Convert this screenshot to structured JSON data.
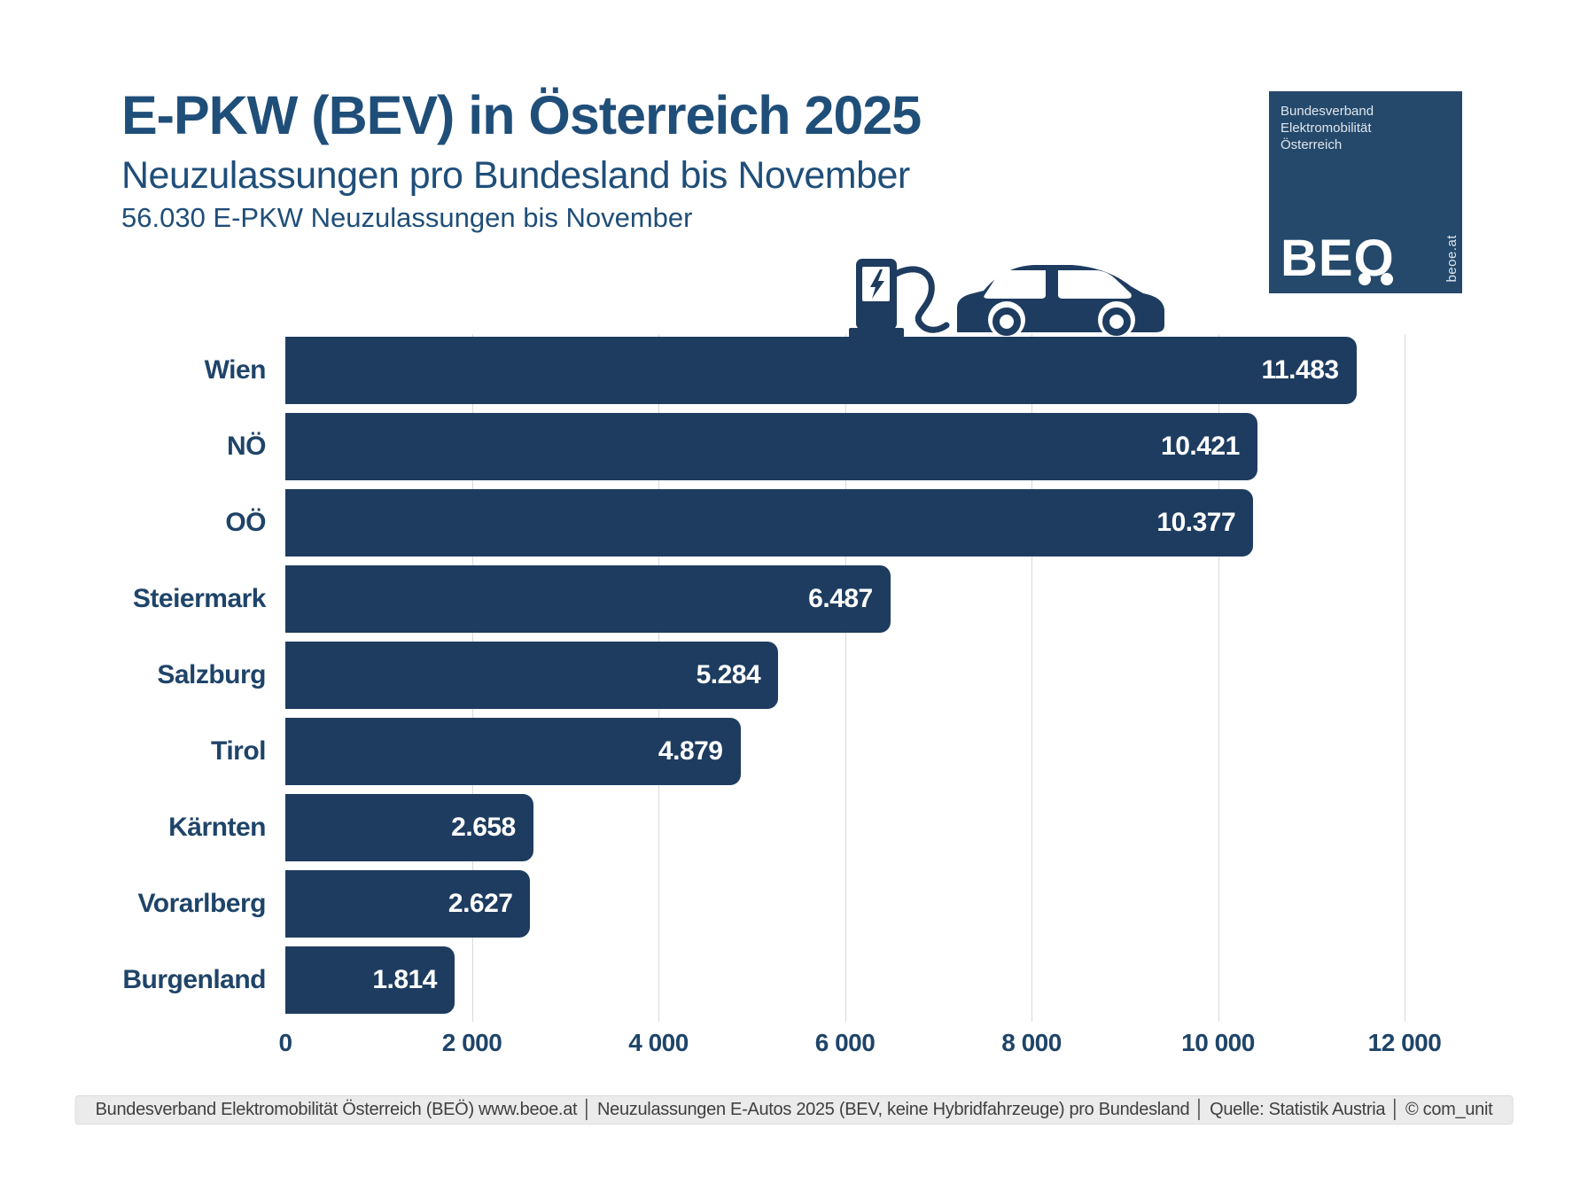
{
  "page": {
    "title": "E-PKW (BEV) in Österreich 2025",
    "subtitle": "Neuzulassungen pro Bundesland bis November",
    "note": "56.030 E-PKW Neuzulassungen bis November",
    "footer": "Bundesverband Elektromobilität Österreich (BEÖ) www.beoe.at │ Neuzulassungen E-Autos 2025 (BEV, keine Hybridfahrzeuge) pro Bundesland │ Quelle: Statistik Austria │ © com_unit"
  },
  "logo": {
    "line1": "Bundesverband",
    "line2": "Elektromobilität",
    "line3": "Österreich",
    "acronym": "BEO",
    "domain": "beoe.at"
  },
  "icons": {
    "ev_charging": "ev-charging-station-and-car-icon"
  },
  "colors": {
    "navy_bar": "#1e3c60",
    "navy_title": "#1f4e79",
    "navy_label": "#1f4469",
    "logo_bg": "#24496b",
    "grid": "#d9d9d9",
    "footer_bg": "#ebebeb",
    "footer_text": "#3f3f3f"
  },
  "chart_data": {
    "type": "bar",
    "orientation": "horizontal",
    "title": "E-PKW (BEV) in Österreich 2025",
    "subtitle": "Neuzulassungen pro Bundesland bis November",
    "total_note": "56.030 E-PKW Neuzulassungen bis November",
    "categories": [
      "Wien",
      "NÖ",
      "OÖ",
      "Steiermark",
      "Salzburg",
      "Tirol",
      "Kärnten",
      "Vorarlberg",
      "Burgenland"
    ],
    "values": [
      11483,
      10421,
      10377,
      6487,
      5284,
      4879,
      2658,
      2627,
      1814
    ],
    "value_labels": [
      "11.483",
      "10.421",
      "10.377",
      "6.487",
      "5.284",
      "4.879",
      "2.658",
      "2.627",
      "1.814"
    ],
    "xlabel": "",
    "ylabel": "",
    "xlim": [
      0,
      12000
    ],
    "x_ticks": [
      0,
      2000,
      4000,
      6000,
      8000,
      10000,
      12000
    ],
    "x_tick_labels": [
      "0",
      "2 000",
      "4 000",
      "6 000",
      "8 000",
      "10 000",
      "12 000"
    ],
    "grid": true,
    "legend": false,
    "bar_color": "#1e3c60",
    "value_label_color": "#ffffff"
  }
}
